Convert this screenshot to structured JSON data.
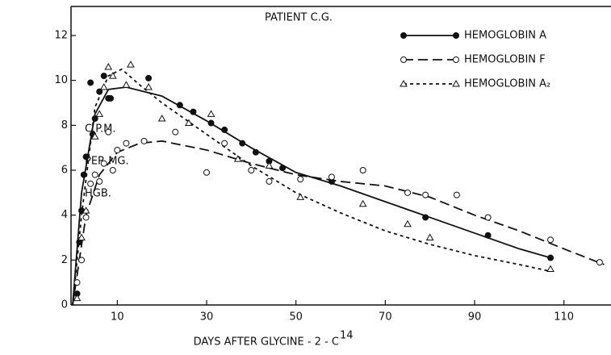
{
  "chart_data": {
    "type": "scatter",
    "title": "PATIENT C.G.",
    "ylabel": [
      "C.P.M.",
      "PER MG.",
      "HGB."
    ],
    "xlabel": "DAYS AFTER GLYCINE - 2 - C",
    "xlabel_superscript": "14",
    "xlim": [
      0,
      120
    ],
    "ylim": [
      0,
      12
    ],
    "xticks": [
      10,
      30,
      50,
      70,
      90,
      110
    ],
    "yticks": [
      0,
      2,
      4,
      6,
      8,
      10,
      12
    ],
    "legend": "upper right",
    "series": [
      {
        "name": "HEMOGLOBIN A",
        "color": "#111",
        "marker": "filled-circle",
        "line_style": "solid",
        "x": [
          1,
          1.5,
          2,
          2.5,
          3,
          4,
          4.5,
          5,
          6,
          7,
          8,
          8.5,
          17,
          24,
          27,
          31,
          34,
          38,
          41,
          44,
          47,
          58,
          79,
          93,
          107
        ],
        "values": [
          0.5,
          2.8,
          4.2,
          5.8,
          6.6,
          9.9,
          7.6,
          8.3,
          9.5,
          10.2,
          9.2,
          9.2,
          10.1,
          8.9,
          8.6,
          8.1,
          7.8,
          7.2,
          6.8,
          6.4,
          6.1,
          5.5,
          3.9,
          3.1,
          2.1
        ],
        "curve": {
          "x": [
            0,
            2,
            5,
            8,
            12,
            20,
            30,
            40,
            50,
            60,
            70,
            80,
            90,
            100,
            107
          ],
          "y": [
            0,
            5,
            8.5,
            9.6,
            9.7,
            9.3,
            8.2,
            7,
            5.9,
            5.3,
            4.6,
            3.9,
            3.2,
            2.5,
            2.1
          ]
        }
      },
      {
        "name": "HEMOGLOBIN F",
        "color": "#111",
        "marker": "open-circle",
        "line_style": "dashed",
        "x": [
          1,
          2,
          3,
          4,
          5,
          6,
          7,
          8,
          9,
          10,
          12,
          16,
          23,
          30,
          34,
          40,
          44,
          51,
          58,
          65,
          75,
          79,
          86,
          93,
          107,
          118
        ],
        "values": [
          1,
          2,
          3.9,
          5.4,
          5.8,
          5.5,
          6.3,
          7.7,
          6,
          6.9,
          7.2,
          7.3,
          7.7,
          5.9,
          7.2,
          6,
          5.5,
          5.6,
          5.7,
          6,
          5,
          4.9,
          4.9,
          3.9,
          2.9,
          1.9
        ],
        "curve": {
          "x": [
            0,
            3,
            6,
            10,
            15,
            20,
            30,
            40,
            50,
            60,
            70,
            80,
            90,
            100,
            110,
            119
          ],
          "y": [
            0,
            4,
            5.8,
            6.8,
            7.2,
            7.3,
            6.9,
            6.3,
            5.8,
            5.5,
            5.3,
            4.8,
            4,
            3.3,
            2.5,
            1.8
          ]
        }
      },
      {
        "name": "HEMOGLOBIN A₂",
        "color": "#111",
        "marker": "open-triangle",
        "line_style": "dotted",
        "x": [
          1,
          2,
          3,
          5,
          6,
          7,
          8,
          9,
          12,
          13,
          17,
          20,
          26,
          31,
          37,
          44,
          51,
          65,
          75,
          80,
          107
        ],
        "values": [
          0.3,
          3,
          4.2,
          7.5,
          8.5,
          9.7,
          10.6,
          10.2,
          9.8,
          10.7,
          9.7,
          8.3,
          8.1,
          8.5,
          6.5,
          6.2,
          4.8,
          4.5,
          3.6,
          3,
          1.6
        ],
        "curve": {
          "x": [
            0,
            2,
            5,
            8,
            11,
            15,
            20,
            30,
            40,
            50,
            60,
            70,
            80,
            90,
            100,
            107
          ],
          "y": [
            0,
            4,
            8.8,
            10.2,
            10.5,
            9.8,
            9,
            7.6,
            6.2,
            5,
            4.1,
            3.3,
            2.7,
            2.2,
            1.8,
            1.5
          ]
        }
      }
    ]
  }
}
